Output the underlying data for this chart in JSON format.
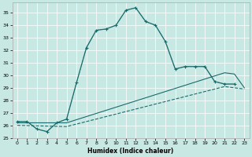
{
  "title": "",
  "xlabel": "Humidex (Indice chaleur)",
  "xlim": [
    -0.5,
    23.5
  ],
  "ylim": [
    25,
    35.8
  ],
  "yticks": [
    25,
    26,
    27,
    28,
    29,
    30,
    31,
    32,
    33,
    34,
    35
  ],
  "xticks": [
    0,
    1,
    2,
    3,
    4,
    5,
    6,
    7,
    8,
    9,
    10,
    11,
    12,
    13,
    14,
    15,
    16,
    17,
    18,
    19,
    20,
    21,
    22,
    23
  ],
  "bg_color": "#c8e8e4",
  "line_color": "#1a6b6b",
  "line1_x": [
    0,
    1,
    2,
    3,
    4,
    5,
    6,
    7,
    8,
    9,
    10,
    11,
    12,
    13,
    14,
    15,
    16,
    17,
    18,
    19,
    20,
    21,
    22
  ],
  "line1_y": [
    26.3,
    26.3,
    25.7,
    25.5,
    26.2,
    26.5,
    29.4,
    32.2,
    33.6,
    33.7,
    34.0,
    35.2,
    35.4,
    34.3,
    34.0,
    32.7,
    30.5,
    30.7,
    30.7,
    30.7,
    29.5,
    29.3,
    29.3
  ],
  "line2_x": [
    0,
    1,
    2,
    3,
    4,
    5,
    6,
    7,
    8,
    9,
    10,
    11,
    12,
    13,
    14,
    15,
    16,
    17,
    18,
    19,
    20,
    21,
    22
  ],
  "line2_y": [
    26.3,
    26.3,
    25.7,
    25.5,
    26.2,
    26.5,
    29.4,
    32.2,
    33.6,
    33.7,
    34.0,
    35.2,
    35.4,
    34.3,
    34.0,
    32.7,
    30.5,
    30.7,
    30.7,
    30.7,
    29.5,
    29.3,
    29.3
  ],
  "line3_x": [
    0,
    5,
    6,
    7,
    8,
    9,
    10,
    11,
    12,
    13,
    14,
    15,
    16,
    17,
    18,
    19,
    20,
    21,
    22,
    23
  ],
  "line3_y": [
    26.2,
    26.2,
    26.45,
    26.7,
    26.95,
    27.2,
    27.45,
    27.7,
    27.95,
    28.2,
    28.45,
    28.7,
    28.95,
    29.2,
    29.45,
    29.7,
    29.95,
    30.2,
    30.1,
    29.0
  ],
  "line4_x": [
    0,
    5,
    6,
    7,
    8,
    9,
    10,
    11,
    12,
    13,
    14,
    15,
    16,
    17,
    18,
    19,
    20,
    21,
    22,
    23
  ],
  "line4_y": [
    26.0,
    25.9,
    26.1,
    26.3,
    26.5,
    26.7,
    26.9,
    27.1,
    27.3,
    27.5,
    27.7,
    27.9,
    28.1,
    28.3,
    28.5,
    28.7,
    28.9,
    29.1,
    29.0,
    28.9
  ]
}
